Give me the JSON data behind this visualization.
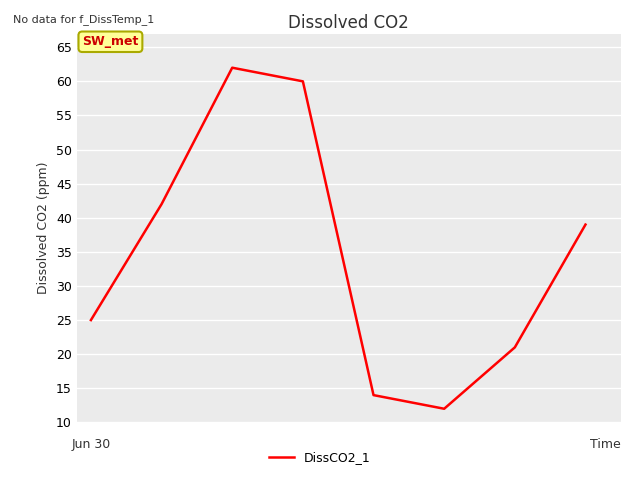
{
  "title": "Dissolved CO2",
  "top_left_text": "No data for f_DissTemp_1",
  "ylabel": "Dissolved CO2 (ppm)",
  "xlabel": "Time",
  "x_start_label": "Jun 30",
  "ylim": [
    10,
    67
  ],
  "yticks": [
    10,
    15,
    20,
    25,
    30,
    35,
    40,
    45,
    50,
    55,
    60,
    65
  ],
  "line_x": [
    0,
    1,
    2,
    3,
    4,
    5,
    6,
    7
  ],
  "line_y": [
    25,
    42,
    62,
    60,
    14,
    12,
    21,
    39
  ],
  "line_color": "#ff0000",
  "line_width": 1.8,
  "legend_label": "DissCO2_1",
  "legend_box_label": "SW_met",
  "legend_box_bg": "#ffff99",
  "legend_box_edge": "#aaaa00",
  "legend_box_text_color": "#cc0000",
  "ax_bg_color": "#ebebeb",
  "fig_bg_color": "#ffffff",
  "title_fontsize": 12,
  "axis_label_fontsize": 9,
  "tick_fontsize": 9,
  "grid_color": "#ffffff",
  "grid_linewidth": 1.0
}
